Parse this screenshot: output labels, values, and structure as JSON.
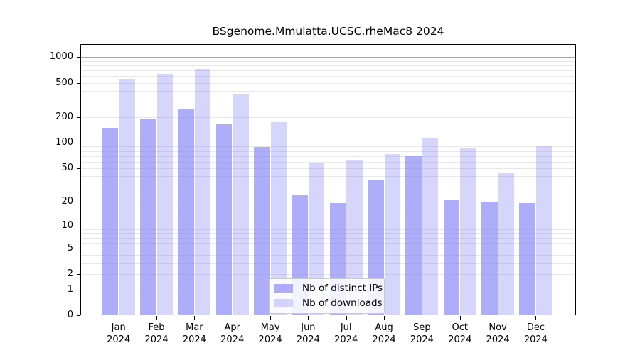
{
  "chart_data": {
    "type": "bar",
    "title": "BSgenome.Mmulatta.UCSC.rheMac8 2024",
    "year_label": "2024",
    "categories": [
      "Jan",
      "Feb",
      "Mar",
      "Apr",
      "May",
      "Jun",
      "Jul",
      "Aug",
      "Sep",
      "Oct",
      "Nov",
      "Dec"
    ],
    "series": [
      {
        "name": "Nb of distinct IPs",
        "color": "rgba(130,130,248,0.66)",
        "values": [
          150,
          190,
          250,
          163,
          89,
          24,
          19,
          36,
          70,
          21,
          20,
          19
        ]
      },
      {
        "name": "Nb of downloads",
        "color": "rgba(130,130,248,0.33)",
        "values": [
          555,
          632,
          728,
          368,
          175,
          57,
          62,
          74,
          115,
          85,
          44,
          90
        ]
      }
    ],
    "y_ticks": [
      0,
      1,
      2,
      5,
      10,
      20,
      50,
      100,
      200,
      500,
      1000
    ],
    "ylim": [
      0,
      1412
    ],
    "scale": "log10(1+x)",
    "grid": true,
    "grid_minor_color": "#e7e7e7",
    "grid_major_color": "#a6a6a6",
    "axis_color": "#000000",
    "background_color": "#ffffff",
    "legend_position": "bottom-center"
  }
}
